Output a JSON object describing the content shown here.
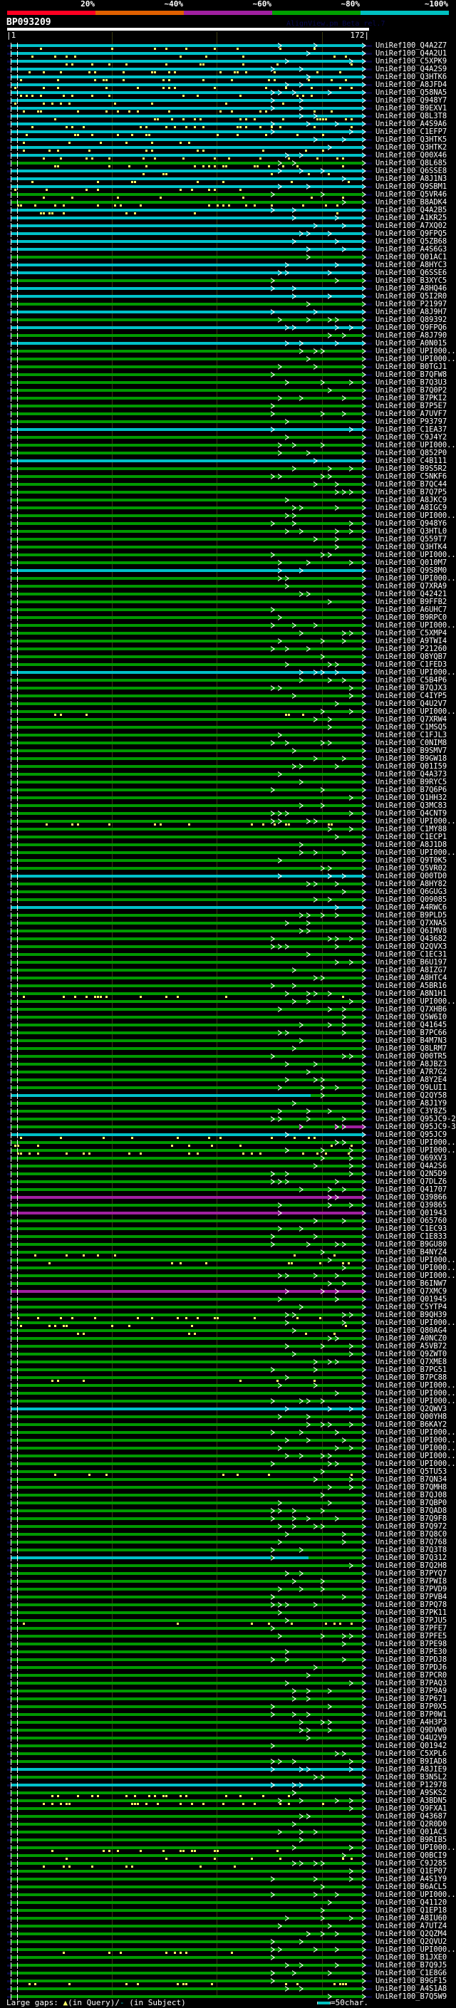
{
  "legend": {
    "labels": [
      "20%",
      "~40%",
      "~60%",
      "~80%",
      "~100%"
    ],
    "colors": [
      "#ff0022",
      "#e06000",
      "#a020a0",
      "#00a000",
      "#00c0c0"
    ]
  },
  "query": {
    "name": "BP093209",
    "start": "|1",
    "end": "172|",
    "length": 172
  },
  "credit": "AlignView.pm Beta rel.7",
  "bin_colors": {
    "~100%": "#00c0c8",
    "~80%": "#009900",
    "~60%": "#a020a0"
  },
  "rows": [
    {
      "id": "UniRef100_Q4A2Z7",
      "bin": "~100%",
      "gaps": true
    },
    {
      "id": "UniRef100_Q4A2U1",
      "bin": "~100%",
      "gaps": true
    },
    {
      "id": "UniRef100_C5XPK9",
      "bin": "~100%",
      "gaps": true
    },
    {
      "id": "UniRef100_Q4A2S9",
      "bin": "~100%",
      "gaps": true
    },
    {
      "id": "UniRef100_Q3HTK6",
      "bin": "~100%",
      "gaps": true
    },
    {
      "id": "UniRef100_A8JFD4",
      "bin": "~100%",
      "gaps": true
    },
    {
      "id": "UniRef100_Q58NA5",
      "bin": "~100%",
      "gaps": true
    },
    {
      "id": "UniRef100_Q948Y7",
      "bin": "~100%",
      "gaps": true
    },
    {
      "id": "UniRef100_B9EXV1",
      "bin": "~100%",
      "gaps": true
    },
    {
      "id": "UniRef100_Q8L3T8",
      "bin": "~100%",
      "gaps": true
    },
    {
      "id": "UniRef100_A4S9A6",
      "bin": "~100%",
      "gaps": true
    },
    {
      "id": "UniRef100_C1EFP7",
      "bin": "~100%",
      "gaps": true
    },
    {
      "id": "UniRef100_Q3HTK5",
      "bin": "~100%",
      "gaps": true
    },
    {
      "id": "UniRef100_Q3HTK2",
      "bin": "~100%",
      "gaps": true
    },
    {
      "id": "UniRef100_Q00X46",
      "bin": "~100%",
      "gaps": true
    },
    {
      "id": "UniRef100_Q8L685",
      "bin": "~80%",
      "gaps": true
    },
    {
      "id": "UniRef100_Q6SSE8",
      "bin": "~100%",
      "gaps": true
    },
    {
      "id": "UniRef100_A8J1N3",
      "bin": "~100%",
      "gaps": true
    },
    {
      "id": "UniRef100_Q9SBM1",
      "bin": "~100%",
      "gaps": true
    },
    {
      "id": "UniRef100_Q5VR46",
      "bin": "~80%",
      "gaps": true
    },
    {
      "id": "UniRef100_B8ADK4",
      "bin": "~80%",
      "gaps": true
    },
    {
      "id": "UniRef100_Q4A2B5",
      "bin": "~100%",
      "gaps": true
    },
    {
      "id": "UniRef100_A1KR25",
      "bin": "~100%"
    },
    {
      "id": "UniRef100_A7XQ02",
      "bin": "~100%"
    },
    {
      "id": "UniRef100_Q9FPQ5",
      "bin": "~100%"
    },
    {
      "id": "UniRef100_Q5ZB68",
      "bin": "~100%"
    },
    {
      "id": "UniRef100_A4S6G3",
      "bin": "~100%"
    },
    {
      "id": "UniRef100_Q01AC1",
      "bin": "~80%"
    },
    {
      "id": "UniRef100_A8HYC3",
      "bin": "~100%"
    },
    {
      "id": "UniRef100_Q6SSE6",
      "bin": "~100%"
    },
    {
      "id": "UniRef100_B3XYC5",
      "bin": "~80%"
    },
    {
      "id": "UniRef100_A8HQ46",
      "bin": "~100%"
    },
    {
      "id": "UniRef100_Q5I2R0",
      "bin": "~100%"
    },
    {
      "id": "UniRef100_P21997",
      "bin": "~80%"
    },
    {
      "id": "UniRef100_A8J9H7",
      "bin": "~100%"
    },
    {
      "id": "UniRef100_Q89392",
      "bin": "~80%"
    },
    {
      "id": "UniRef100_Q9FPQ6",
      "bin": "~100%"
    },
    {
      "id": "UniRef100_A8J790",
      "bin": "~80%"
    },
    {
      "id": "UniRef100_A0N015",
      "bin": "~100%"
    },
    {
      "id": "UniRef100_UPI000..",
      "bin": "~80%"
    },
    {
      "id": "UniRef100_UPI000..",
      "bin": "~80%"
    },
    {
      "id": "UniRef100_B0TGJ1",
      "bin": "~80%"
    },
    {
      "id": "UniRef100_B7QFW8",
      "bin": "~80%"
    },
    {
      "id": "UniRef100_B7Q3U3",
      "bin": "~80%"
    },
    {
      "id": "UniRef100_B7Q0P2",
      "bin": "~80%"
    },
    {
      "id": "UniRef100_B7PKI2",
      "bin": "~80%"
    },
    {
      "id": "UniRef100_B7P5E7",
      "bin": "~80%"
    },
    {
      "id": "UniRef100_A7UVF7",
      "bin": "~80%"
    },
    {
      "id": "UniRef100_P93797",
      "bin": "~80%"
    },
    {
      "id": "UniRef100_C1EA37",
      "bin": "~100%"
    },
    {
      "id": "UniRef100_C9J4Y2",
      "bin": "~80%"
    },
    {
      "id": "UniRef100_UPI000..",
      "bin": "~80%"
    },
    {
      "id": "UniRef100_Q852P0",
      "bin": "~80%"
    },
    {
      "id": "UniRef100_C4B111",
      "bin": "~100%"
    },
    {
      "id": "UniRef100_B9S5R2",
      "bin": "~80%"
    },
    {
      "id": "UniRef100_C5NKF6",
      "bin": "~80%"
    },
    {
      "id": "UniRef100_B7QC44",
      "bin": "~80%"
    },
    {
      "id": "UniRef100_B7Q7P5",
      "bin": "~80%"
    },
    {
      "id": "UniRef100_A8JKC9",
      "bin": "~80%"
    },
    {
      "id": "UniRef100_A8IGC9",
      "bin": "~80%"
    },
    {
      "id": "UniRef100_UPI000..",
      "bin": "~80%"
    },
    {
      "id": "UniRef100_Q948Y6",
      "bin": "~80%"
    },
    {
      "id": "UniRef100_Q3HTL0",
      "bin": "~80%"
    },
    {
      "id": "UniRef100_Q559T7",
      "bin": "~80%"
    },
    {
      "id": "UniRef100_Q3HTK4",
      "bin": "~80%"
    },
    {
      "id": "UniRef100_UPI000..",
      "bin": "~80%"
    },
    {
      "id": "UniRef100_Q010M7",
      "bin": "~80%"
    },
    {
      "id": "UniRef100_Q9S8M0",
      "bin": "~100%"
    },
    {
      "id": "UniRef100_UPI000..",
      "bin": "~80%"
    },
    {
      "id": "UniRef100_Q7XRA9",
      "bin": "~80%"
    },
    {
      "id": "UniRef100_Q42421",
      "bin": "~80%"
    },
    {
      "id": "UniRef100_B9FFB2",
      "bin": "~80%"
    },
    {
      "id": "UniRef100_A6UHC7",
      "bin": "~80%"
    },
    {
      "id": "UniRef100_B9RPC0",
      "bin": "~80%"
    },
    {
      "id": "UniRef100_UPI000..",
      "bin": "~80%"
    },
    {
      "id": "UniRef100_C5XMP4",
      "bin": "~80%"
    },
    {
      "id": "UniRef100_A9TWI4",
      "bin": "~80%"
    },
    {
      "id": "UniRef100_P21260",
      "bin": "~80%"
    },
    {
      "id": "UniRef100_Q8YQB7",
      "bin": "~80%"
    },
    {
      "id": "UniRef100_C1FED3",
      "bin": "~80%"
    },
    {
      "id": "UniRef100_UPI000..",
      "bin": "~100%"
    },
    {
      "id": "UniRef100_C5B4P6",
      "bin": "~80%"
    },
    {
      "id": "UniRef100_B7QJX3",
      "bin": "~80%"
    },
    {
      "id": "UniRef100_C4IYP5",
      "bin": "~80%"
    },
    {
      "id": "UniRef100_Q4U2V7",
      "bin": "~80%"
    },
    {
      "id": "UniRef100_UPI000..",
      "bin": "~80%",
      "gaps": true
    },
    {
      "id": "UniRef100_Q7XRW4",
      "bin": "~80%"
    },
    {
      "id": "UniRef100_C1MSQ5",
      "bin": "~80%"
    },
    {
      "id": "UniRef100_C1FJL3",
      "bin": "~80%"
    },
    {
      "id": "UniRef100_C0NIM8",
      "bin": "~80%"
    },
    {
      "id": "UniRef100_B9SMV7",
      "bin": "~80%"
    },
    {
      "id": "UniRef100_B9GW18",
      "bin": "~80%"
    },
    {
      "id": "UniRef100_Q01I59",
      "bin": "~80%"
    },
    {
      "id": "UniRef100_Q4A373",
      "bin": "~80%"
    },
    {
      "id": "UniRef100_B9RYC5",
      "bin": "~80%"
    },
    {
      "id": "UniRef100_B7Q6P6",
      "bin": "~80%"
    },
    {
      "id": "UniRef100_Q1HH32",
      "bin": "~80%"
    },
    {
      "id": "UniRef100_Q3MC83",
      "bin": "~80%"
    },
    {
      "id": "UniRef100_Q4CNT9",
      "bin": "~80%"
    },
    {
      "id": "UniRef100_UPI000..",
      "bin": "~80%",
      "gaps": true
    },
    {
      "id": "UniRef100_C1MY88",
      "bin": "~80%"
    },
    {
      "id": "UniRef100_C1ECP1",
      "bin": "~80%"
    },
    {
      "id": "UniRef100_A8J1D8",
      "bin": "~80%"
    },
    {
      "id": "UniRef100_UPI000..",
      "bin": "~80%"
    },
    {
      "id": "UniRef100_Q9T0K5",
      "bin": "~80%"
    },
    {
      "id": "UniRef100_Q5VR02",
      "bin": "~80%"
    },
    {
      "id": "UniRef100_Q00TD0",
      "bin": "~100%"
    },
    {
      "id": "UniRef100_A8HY82",
      "bin": "~80%"
    },
    {
      "id": "UniRef100_Q6GUG3",
      "bin": "~80%"
    },
    {
      "id": "UniRef100_Q09085",
      "bin": "~80%"
    },
    {
      "id": "UniRef100_A4RWC6",
      "bin": "~100%"
    },
    {
      "id": "UniRef100_B9PLD5",
      "bin": "~80%"
    },
    {
      "id": "UniRef100_Q7XNA5",
      "bin": "~80%"
    },
    {
      "id": "UniRef100_Q6IMV8",
      "bin": "~80%"
    },
    {
      "id": "UniRef100_Q43682",
      "bin": "~80%"
    },
    {
      "id": "UniRef100_Q2QVX3",
      "bin": "~80%"
    },
    {
      "id": "UniRef100_C1EC31",
      "bin": "~80%"
    },
    {
      "id": "UniRef100_B6U197",
      "bin": "~80%"
    },
    {
      "id": "UniRef100_A8IZG7",
      "bin": "~80%"
    },
    {
      "id": "UniRef100_A8HTC4",
      "bin": "~80%"
    },
    {
      "id": "UniRef100_A5BR16",
      "bin": "~80%"
    },
    {
      "id": "UniRef100_A8N1H1",
      "bin": "~80%",
      "gaps": true
    },
    {
      "id": "UniRef100_UPI000..",
      "bin": "~80%"
    },
    {
      "id": "UniRef100_Q7XHB6",
      "bin": "~80%"
    },
    {
      "id": "UniRef100_Q5W6I0",
      "bin": "~80%"
    },
    {
      "id": "UniRef100_Q41645",
      "bin": "~80%"
    },
    {
      "id": "UniRef100_B7PC66",
      "bin": "~80%"
    },
    {
      "id": "UniRef100_B4M7N3",
      "bin": "~80%"
    },
    {
      "id": "UniRef100_Q8LRM7",
      "bin": "~80%"
    },
    {
      "id": "UniRef100_Q00TR5",
      "bin": "~80%"
    },
    {
      "id": "UniRef100_A8JBZ3",
      "bin": "~80%"
    },
    {
      "id": "UniRef100_A7R7G2",
      "bin": "~80%"
    },
    {
      "id": "UniRef100_A8Y2E4",
      "bin": "~80%"
    },
    {
      "id": "UniRef100_Q9LUI1",
      "bin": "~80%"
    },
    {
      "id": "UniRef100_Q2QY58",
      "bin": "~100%",
      "bin2": "~80%",
      "switch_at": 147
    },
    {
      "id": "UniRef100_A8J1Y9",
      "bin": "~80%"
    },
    {
      "id": "UniRef100_C3Y8Z5",
      "bin": "~80%"
    },
    {
      "id": "UniRef100_Q95JC9-2",
      "bin": "~80%"
    },
    {
      "id": "UniRef100_Q95JC9-3",
      "bin": "~80%",
      "bin2": "~60%",
      "switch_at": 164
    },
    {
      "id": "UniRef100_Q95JC9",
      "bin": "~100%",
      "gaps": true
    },
    {
      "id": "UniRef100_UPI000..",
      "bin": "~80%",
      "gaps": true
    },
    {
      "id": "UniRef100_UPI000..",
      "bin": "~80%",
      "gaps": true
    },
    {
      "id": "UniRef100_Q69XV3",
      "bin": "~80%"
    },
    {
      "id": "UniRef100_Q4A2S6",
      "bin": "~80%"
    },
    {
      "id": "UniRef100_Q2N5D9",
      "bin": "~80%"
    },
    {
      "id": "UniRef100_Q7DLZ6",
      "bin": "~80%"
    },
    {
      "id": "UniRef100_Q41707",
      "bin": "~80%"
    },
    {
      "id": "UniRef100_Q39866",
      "bin": "~60%"
    },
    {
      "id": "UniRef100_Q39865",
      "bin": "~80%"
    },
    {
      "id": "UniRef100_Q01943",
      "bin": "~60%"
    },
    {
      "id": "UniRef100_O65760",
      "bin": "~80%"
    },
    {
      "id": "UniRef100_C1EC93",
      "bin": "~80%"
    },
    {
      "id": "UniRef100_C1E833",
      "bin": "~80%"
    },
    {
      "id": "UniRef100_B9GU80",
      "bin": "~80%"
    },
    {
      "id": "UniRef100_B4NYZ4",
      "bin": "~80%",
      "gaps": true
    },
    {
      "id": "UniRef100_UPI000..",
      "bin": "~80%",
      "gaps": true
    },
    {
      "id": "UniRef100_UPI000..",
      "bin": "~80%"
    },
    {
      "id": "UniRef100_UPI000..",
      "bin": "~80%"
    },
    {
      "id": "UniRef100_B6INW7",
      "bin": "~80%"
    },
    {
      "id": "UniRef100_Q7XMC9",
      "bin": "~60%"
    },
    {
      "id": "UniRef100_Q01945",
      "bin": "~80%"
    },
    {
      "id": "UniRef100_C5YTP4",
      "bin": "~80%"
    },
    {
      "id": "UniRef100_B9QH39",
      "bin": "~80%",
      "gaps": true
    },
    {
      "id": "UniRef100_UPI000..",
      "bin": "~80%",
      "gaps": true
    },
    {
      "id": "UniRef100_Q80AG4",
      "bin": "~80%",
      "gaps": true
    },
    {
      "id": "UniRef100_A0NCZ0",
      "bin": "~80%"
    },
    {
      "id": "UniRef100_A5VB72",
      "bin": "~80%"
    },
    {
      "id": "UniRef100_Q9ZWT0",
      "bin": "~80%"
    },
    {
      "id": "UniRef100_Q7XME8",
      "bin": "~80%"
    },
    {
      "id": "UniRef100_B7PG51",
      "bin": "~80%"
    },
    {
      "id": "UniRef100_B7PC88",
      "bin": "~80%",
      "gaps": true
    },
    {
      "id": "UniRef100_UPI000..",
      "bin": "~80%"
    },
    {
      "id": "UniRef100_UPI000..",
      "bin": "~80%"
    },
    {
      "id": "UniRef100_UPI000..",
      "bin": "~80%"
    },
    {
      "id": "UniRef100_Q2QWV3",
      "bin": "~100%"
    },
    {
      "id": "UniRef100_Q00YH8",
      "bin": "~80%"
    },
    {
      "id": "UniRef100_B6KAY2",
      "bin": "~80%"
    },
    {
      "id": "UniRef100_UPI000..",
      "bin": "~80%"
    },
    {
      "id": "UniRef100_UPI000..",
      "bin": "~80%"
    },
    {
      "id": "UniRef100_UPI000..",
      "bin": "~80%"
    },
    {
      "id": "UniRef100_UPI000..",
      "bin": "~80%"
    },
    {
      "id": "UniRef100_UPI000..",
      "bin": "~80%"
    },
    {
      "id": "UniRef100_Q5TU53",
      "bin": "~80%",
      "gaps": true
    },
    {
      "id": "UniRef100_B7QN34",
      "bin": "~80%"
    },
    {
      "id": "UniRef100_B7QMH8",
      "bin": "~80%"
    },
    {
      "id": "UniRef100_B7QJ08",
      "bin": "~80%"
    },
    {
      "id": "UniRef100_B7QBP0",
      "bin": "~80%"
    },
    {
      "id": "UniRef100_B7QAD8",
      "bin": "~80%"
    },
    {
      "id": "UniRef100_B7Q9F8",
      "bin": "~80%"
    },
    {
      "id": "UniRef100_B7Q972",
      "bin": "~80%"
    },
    {
      "id": "UniRef100_B7Q8C0",
      "bin": "~80%"
    },
    {
      "id": "UniRef100_B7Q768",
      "bin": "~80%"
    },
    {
      "id": "UniRef100_B7Q3T8",
      "bin": "~80%"
    },
    {
      "id": "UniRef100_B7Q312",
      "bin": "~100%",
      "bin2": "~80%",
      "switch_at": 146
    },
    {
      "id": "UniRef100_B7Q2H8",
      "bin": "~80%"
    },
    {
      "id": "UniRef100_B7PYQ7",
      "bin": "~80%"
    },
    {
      "id": "UniRef100_B7PWI8",
      "bin": "~80%"
    },
    {
      "id": "UniRef100_B7PVD9",
      "bin": "~80%"
    },
    {
      "id": "UniRef100_B7PVB4",
      "bin": "~80%"
    },
    {
      "id": "UniRef100_B7PQ78",
      "bin": "~80%"
    },
    {
      "id": "UniRef100_B7PK11",
      "bin": "~80%"
    },
    {
      "id": "UniRef100_B7PJU5",
      "bin": "~80%",
      "gaps": true
    },
    {
      "id": "UniRef100_B7PFE7",
      "bin": "~80%"
    },
    {
      "id": "UniRef100_B7PFE5",
      "bin": "~80%"
    },
    {
      "id": "UniRef100_B7PE98",
      "bin": "~80%"
    },
    {
      "id": "UniRef100_B7PE30",
      "bin": "~80%"
    },
    {
      "id": "UniRef100_B7PDJ8",
      "bin": "~80%"
    },
    {
      "id": "UniRef100_B7PDJ6",
      "bin": "~80%"
    },
    {
      "id": "UniRef100_B7PCR0",
      "bin": "~80%"
    },
    {
      "id": "UniRef100_B7PAQ3",
      "bin": "~80%"
    },
    {
      "id": "UniRef100_B7P9A9",
      "bin": "~80%"
    },
    {
      "id": "UniRef100_B7P671",
      "bin": "~80%"
    },
    {
      "id": "UniRef100_B7P0X5",
      "bin": "~80%"
    },
    {
      "id": "UniRef100_B7P0W1",
      "bin": "~80%"
    },
    {
      "id": "UniRef100_A4H3P3",
      "bin": "~80%"
    },
    {
      "id": "UniRef100_Q9DVW0",
      "bin": "~80%"
    },
    {
      "id": "UniRef100_Q4U2V9",
      "bin": "~80%"
    },
    {
      "id": "UniRef100_Q01942",
      "bin": "~80%"
    },
    {
      "id": "UniRef100_C5XPL6",
      "bin": "~80%"
    },
    {
      "id": "UniRef100_B9IAD8",
      "bin": "~80%"
    },
    {
      "id": "UniRef100_A8JIE9",
      "bin": "~100%"
    },
    {
      "id": "UniRef100_B3N5L2",
      "bin": "~80%"
    },
    {
      "id": "UniRef100_P12978",
      "bin": "~100%"
    },
    {
      "id": "UniRef100_A9SKS2",
      "bin": "~80%",
      "gaps": true
    },
    {
      "id": "UniRef100_A3BDN5",
      "bin": "~80%",
      "gaps": true
    },
    {
      "id": "UniRef100_Q9FXA1",
      "bin": "~80%"
    },
    {
      "id": "UniRef100_Q43687",
      "bin": "~80%"
    },
    {
      "id": "UniRef100_Q2R0D0",
      "bin": "~80%"
    },
    {
      "id": "UniRef100_Q01AC3",
      "bin": "~80%"
    },
    {
      "id": "UniRef100_B9RIB5",
      "bin": "~80%"
    },
    {
      "id": "UniRef100_UPI000..",
      "bin": "~80%",
      "gaps": true
    },
    {
      "id": "UniRef100_Q0BCI9",
      "bin": "~80%",
      "gaps": true
    },
    {
      "id": "UniRef100_C9J285",
      "bin": "~80%",
      "gaps": true
    },
    {
      "id": "UniRef100_Q1EP07",
      "bin": "~80%"
    },
    {
      "id": "UniRef100_A4S1Y9",
      "bin": "~80%"
    },
    {
      "id": "UniRef100_B6ACL5",
      "bin": "~80%"
    },
    {
      "id": "UniRef100_UPI000..",
      "bin": "~80%"
    },
    {
      "id": "UniRef100_Q41120",
      "bin": "~80%"
    },
    {
      "id": "UniRef100_Q1EP18",
      "bin": "~80%"
    },
    {
      "id": "UniRef100_A8IU60",
      "bin": "~80%"
    },
    {
      "id": "UniRef100_A7UTZ4",
      "bin": "~80%"
    },
    {
      "id": "UniRef100_Q2QZM4",
      "bin": "~80%"
    },
    {
      "id": "UniRef100_Q2QVU2",
      "bin": "~80%"
    },
    {
      "id": "UniRef100_UPI000..",
      "bin": "~80%",
      "gaps": true
    },
    {
      "id": "UniRef100_B1JXE0",
      "bin": "~80%"
    },
    {
      "id": "UniRef100_B7Q9J5",
      "bin": "~80%"
    },
    {
      "id": "UniRef100_C1E8G6",
      "bin": "~80%"
    },
    {
      "id": "UniRef100_B9GF15",
      "bin": "~80%",
      "gaps": true
    },
    {
      "id": "UniRef100_A4S1A8",
      "bin": "~80%"
    },
    {
      "id": "UniRef100_B7Q5W9",
      "bin": "~80%"
    }
  ],
  "footer": {
    "large_gaps_label": "Large gaps:",
    "gap_symbol": "▲",
    "in_query": "(in Query)/",
    "subject_symbol": "-",
    "in_subject": " (in Subject)",
    "scale_label": "=50char."
  }
}
